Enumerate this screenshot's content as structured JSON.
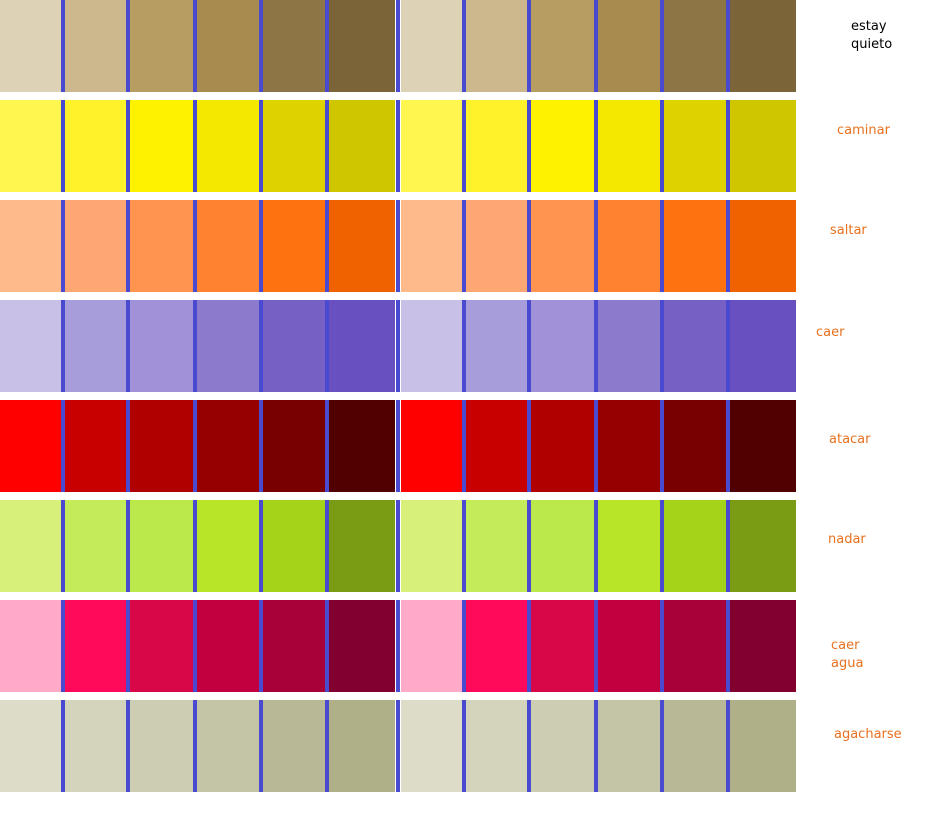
{
  "separator_color": "#4a4ad0",
  "rows": [
    {
      "label": "estay\nquieto",
      "label_color": "#000000",
      "colors": [
        "#ddd2b6",
        "#cdb78d",
        "#b89d63",
        "#a88b4f",
        "#8e7545",
        "#7b6538"
      ]
    },
    {
      "label": "caminar",
      "label_color": "#e8701e",
      "colors": [
        "#fff650",
        "#fff22b",
        "#fff200",
        "#f5e800",
        "#ded200",
        "#d0c600"
      ]
    },
    {
      "label": "saltar",
      "label_color": "#e8701e",
      "colors": [
        "#ffba8c",
        "#ffa772",
        "#ff9450",
        "#ff8230",
        "#ff7210",
        "#f06200"
      ]
    },
    {
      "label": "caer",
      "label_color": "#e8701e",
      "colors": [
        "#c8c0e6",
        "#a89ddb",
        "#a091d8",
        "#8c7acc",
        "#7760c4",
        "#6850c0"
      ]
    },
    {
      "label": "atacar",
      "label_color": "#e8701e",
      "colors": [
        "#ff0000",
        "#c80000",
        "#b00000",
        "#960000",
        "#780000",
        "#500000"
      ]
    },
    {
      "label": "nadar",
      "label_color": "#e8701e",
      "colors": [
        "#d6f07a",
        "#c4ec5a",
        "#bbe84a",
        "#b8e528",
        "#a4d31a",
        "#7a9c14"
      ]
    },
    {
      "label": "caer\nagua",
      "label_color": "#e8701e",
      "colors": [
        "#ffaac8",
        "#ff0a5a",
        "#d80848",
        "#c20040",
        "#a80038",
        "#820030"
      ]
    },
    {
      "label": "agacharse",
      "label_color": "#e8701e",
      "colors": [
        "#dcdcc8",
        "#d4d4bc",
        "#cdcdb4",
        "#c4c4a6",
        "#b8b896",
        "#b0b088"
      ]
    }
  ]
}
